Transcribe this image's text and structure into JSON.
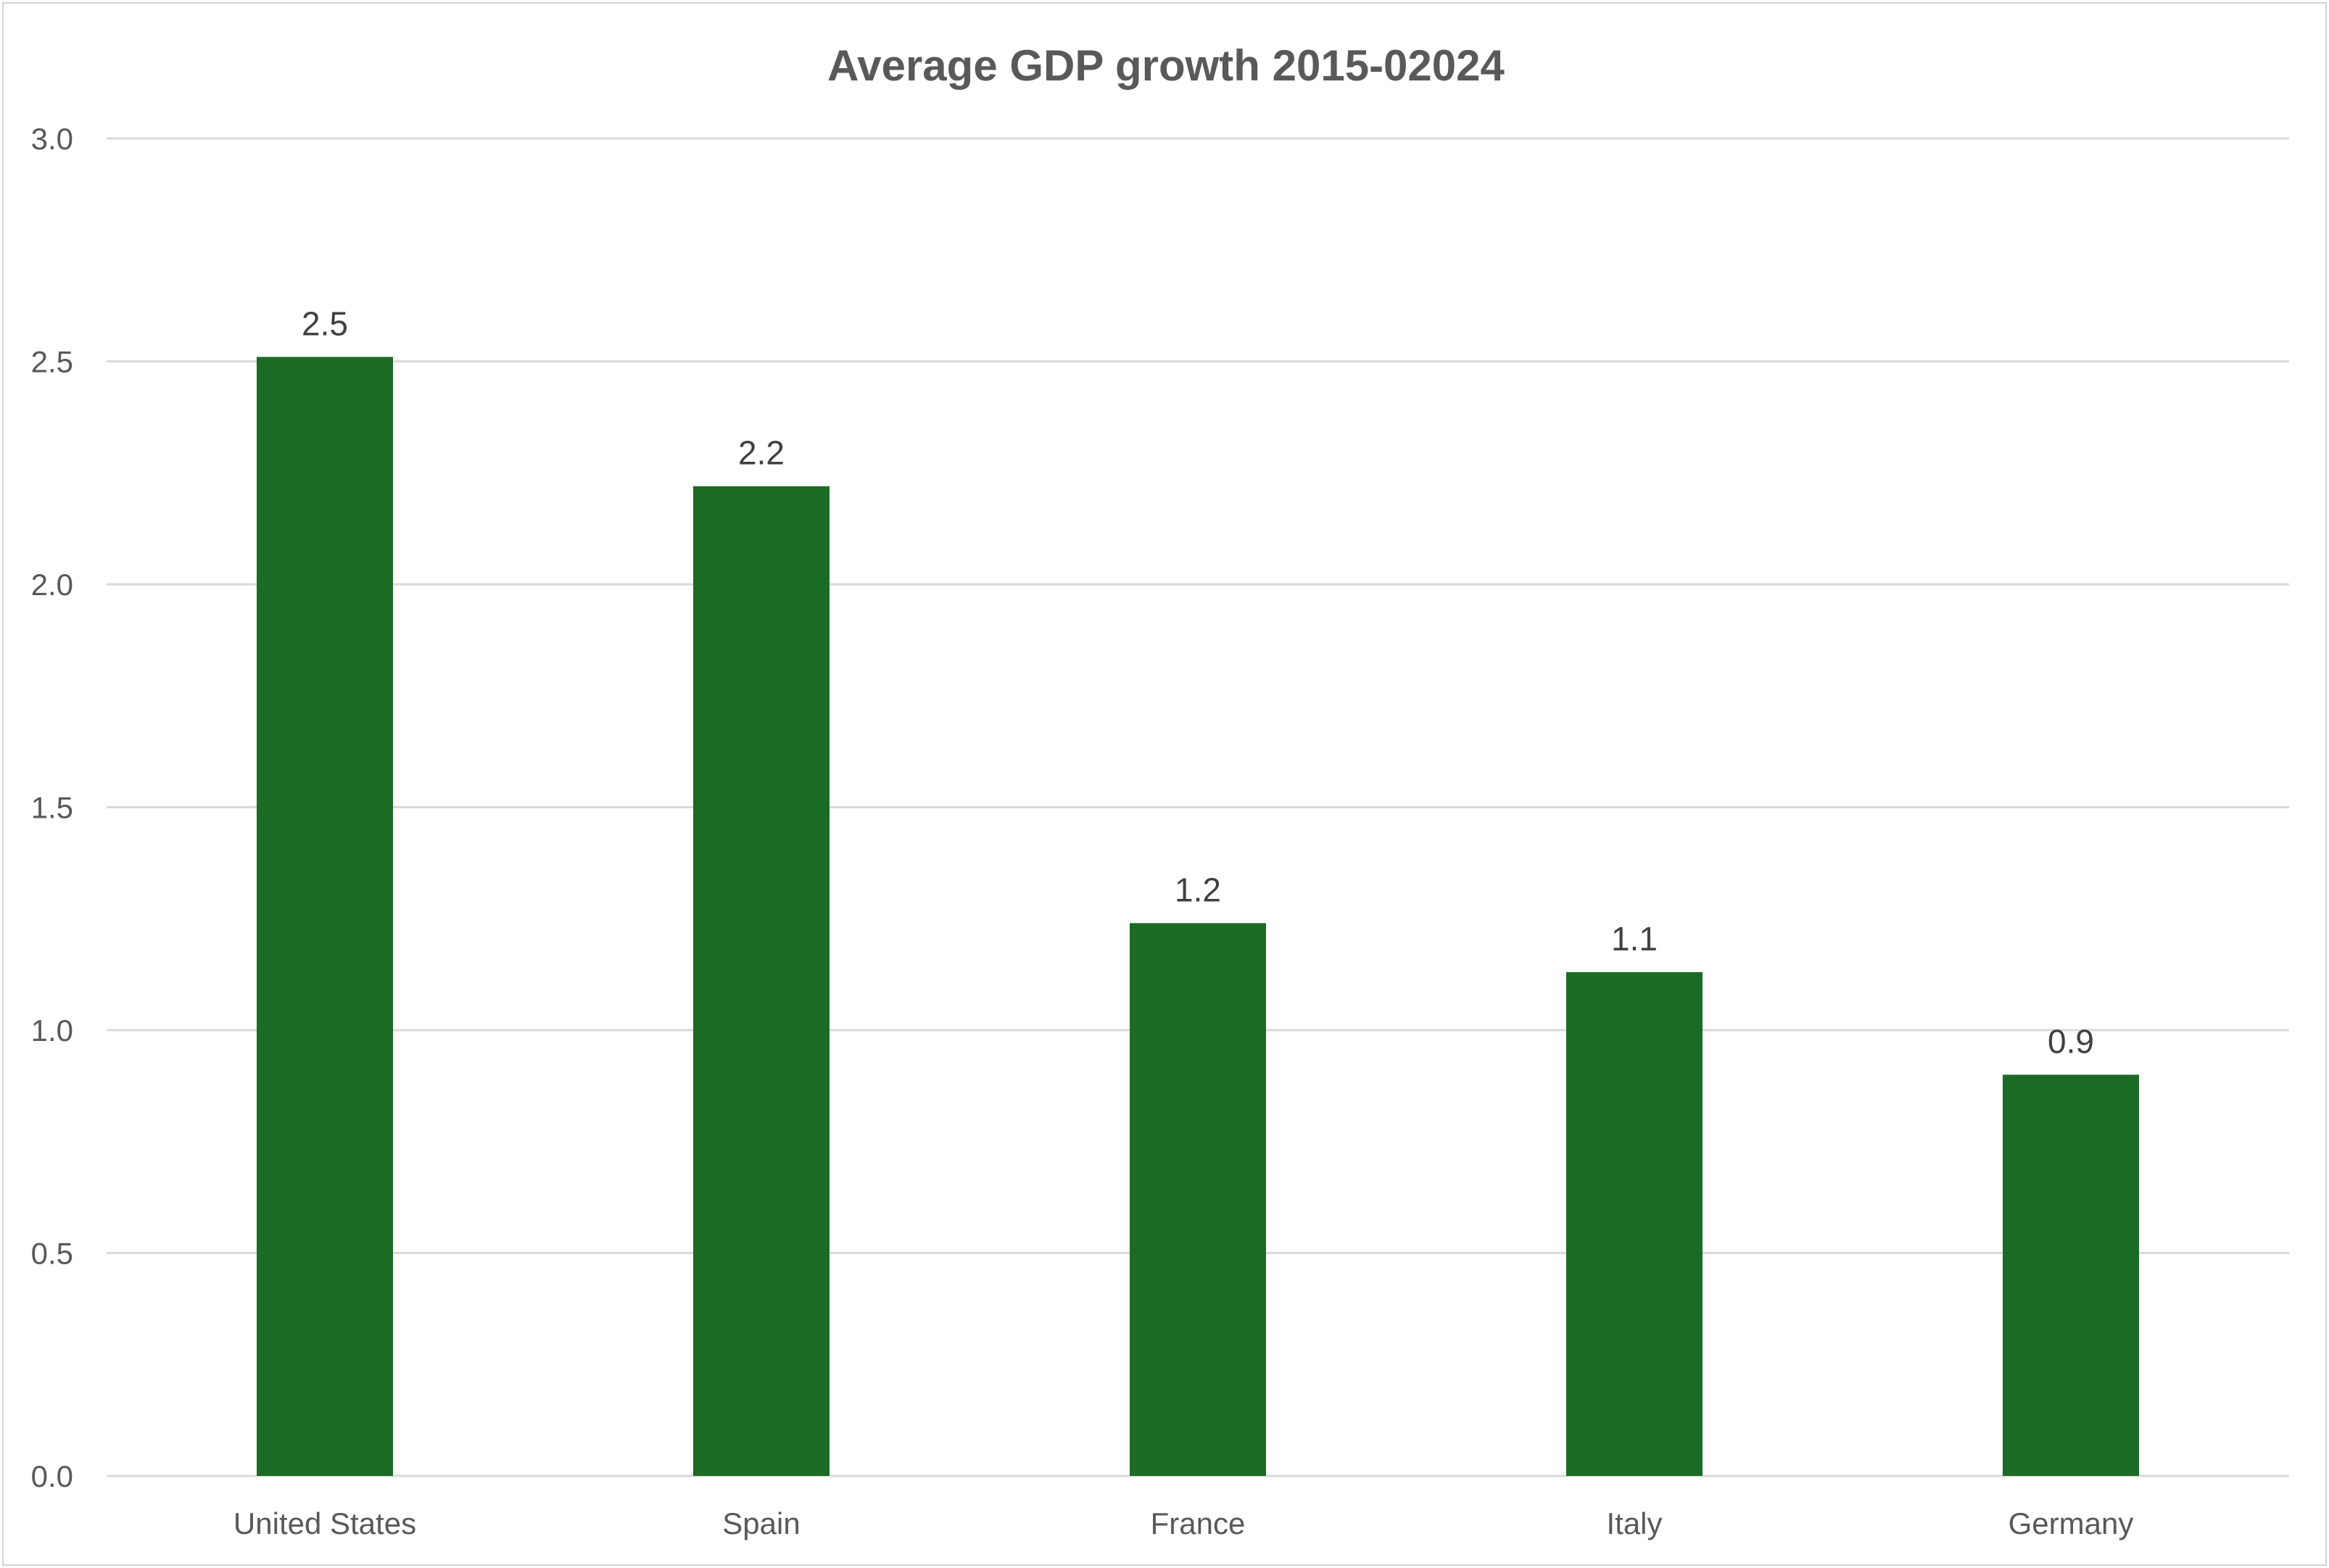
{
  "chart_data": {
    "type": "bar",
    "title": "Average GDP growth 2015-02024",
    "xlabel": "",
    "ylabel": "",
    "categories": [
      "United States",
      "Spain",
      "France",
      "Italy",
      "Germany"
    ],
    "values": [
      2.51,
      2.22,
      1.24,
      1.13,
      0.9
    ],
    "data_labels": [
      "2.5",
      "2.2",
      "1.2",
      "1.1",
      "0.9"
    ],
    "ylim": [
      0,
      3.0
    ],
    "yticks": [
      "0.0",
      "0.5",
      "1.0",
      "1.5",
      "2.0",
      "2.5",
      "3.0"
    ],
    "grid": true,
    "legend": "none",
    "bar_color": "#1b6b25"
  }
}
